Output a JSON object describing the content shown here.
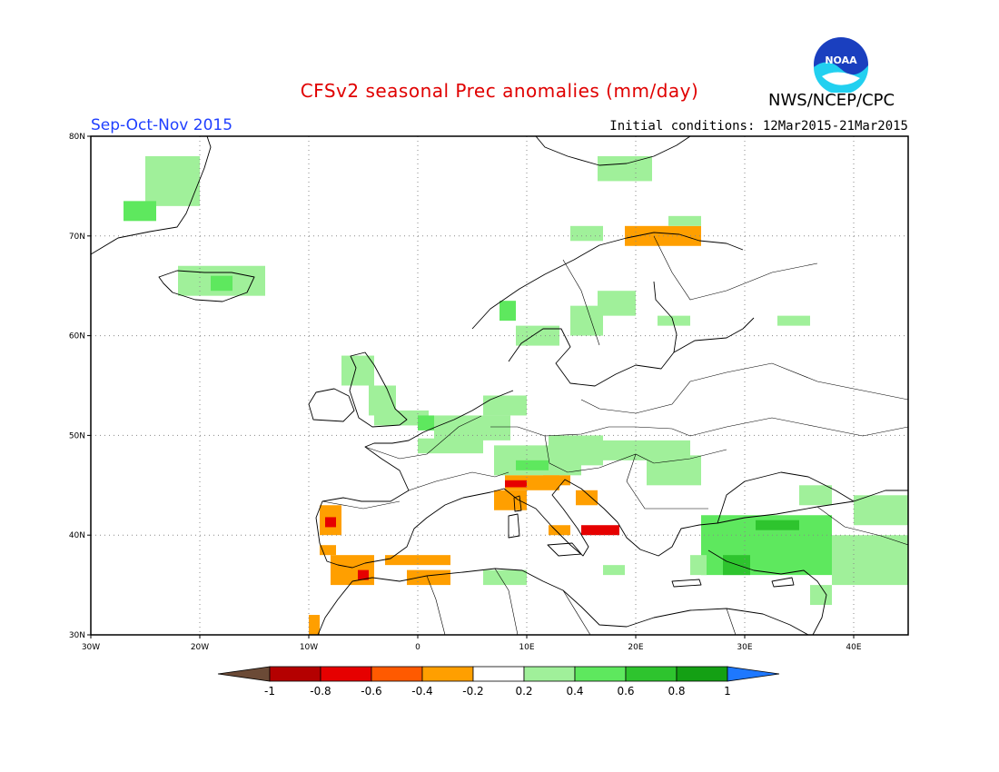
{
  "title": "CFSv2 seasonal Prec anomalies (mm/day)",
  "season": "Sep-Oct-Nov 2015",
  "initial_conditions": "Initial conditions: 12Mar2015-21Mar2015",
  "agency": "NWS/NCEP/CPC",
  "logo_text": "NOAA",
  "map": {
    "lon_range": [
      -30,
      45
    ],
    "lat_range": [
      30,
      80
    ],
    "lat_ticks": [
      "80N",
      "70N",
      "60N",
      "50N",
      "40N",
      "30N"
    ],
    "lon_ticks": [
      "30W",
      "20W",
      "10W",
      "0",
      "10E",
      "20E",
      "30E",
      "40E"
    ],
    "grid": "dotted"
  },
  "colorbar": {
    "labels": [
      "-1",
      "-0.8",
      "-0.6",
      "-0.4",
      "-0.2",
      "0.2",
      "0.4",
      "0.6",
      "0.8",
      "1"
    ],
    "colors": [
      "#6b4a36",
      "#b40000",
      "#e60000",
      "#ff5a00",
      "#ff9f00",
      "#ffffff",
      "#a0f09a",
      "#5ee85e",
      "#2ec42e",
      "#14a014",
      "#1e78ff"
    ]
  },
  "colors": {
    "land_outline": "#000000",
    "grid": "#888888"
  },
  "anomaly_cells": [
    {
      "lon": -25,
      "lat": 73,
      "w": 5,
      "h": 5,
      "level": 0.3
    },
    {
      "lon": -27,
      "lat": 71.5,
      "w": 3,
      "h": 2,
      "level": 0.5
    },
    {
      "lon": -22,
      "lat": 64,
      "w": 8,
      "h": 3,
      "level": 0.3
    },
    {
      "lon": -19,
      "lat": 64.5,
      "w": 2,
      "h": 1.5,
      "level": 0.5
    },
    {
      "lon": -7,
      "lat": 55,
      "w": 3,
      "h": 3,
      "level": 0.3
    },
    {
      "lon": -4.5,
      "lat": 52,
      "w": 2.5,
      "h": 3,
      "level": 0.3
    },
    {
      "lon": -4,
      "lat": 51,
      "w": 5,
      "h": 1.5,
      "level": 0.3
    },
    {
      "lon": 0,
      "lat": 50.5,
      "w": 1.5,
      "h": 1.5,
      "level": 0.5
    },
    {
      "lon": 0,
      "lat": 48.2,
      "w": 6,
      "h": 1.5,
      "level": 0.3
    },
    {
      "lon": 1.5,
      "lat": 49.5,
      "w": 7,
      "h": 2.5,
      "level": 0.3
    },
    {
      "lon": 6,
      "lat": 52,
      "w": 4,
      "h": 2,
      "level": 0.3
    },
    {
      "lon": 7,
      "lat": 46,
      "w": 8,
      "h": 3,
      "level": 0.3
    },
    {
      "lon": 9,
      "lat": 46.5,
      "w": 3,
      "h": 1,
      "level": 0.5
    },
    {
      "lon": 12,
      "lat": 47,
      "w": 5,
      "h": 3,
      "level": 0.3
    },
    {
      "lon": 17,
      "lat": 47.5,
      "w": 8,
      "h": 2,
      "level": 0.3
    },
    {
      "lon": 21,
      "lat": 45,
      "w": 5,
      "h": 3,
      "level": 0.3
    },
    {
      "lon": 9,
      "lat": 59,
      "w": 4,
      "h": 2,
      "level": 0.3
    },
    {
      "lon": 14,
      "lat": 60,
      "w": 3,
      "h": 3,
      "level": 0.3
    },
    {
      "lon": 16.5,
      "lat": 62,
      "w": 3.5,
      "h": 2.5,
      "level": 0.3
    },
    {
      "lon": 22,
      "lat": 61,
      "w": 3,
      "h": 1,
      "level": 0.3
    },
    {
      "lon": 33,
      "lat": 61,
      "w": 3,
      "h": 1,
      "level": 0.3
    },
    {
      "lon": 7.5,
      "lat": 61.5,
      "w": 1.5,
      "h": 2,
      "level": 0.5
    },
    {
      "lon": 16.5,
      "lat": 75.5,
      "w": 5,
      "h": 2.5,
      "level": 0.3
    },
    {
      "lon": 14,
      "lat": 69.5,
      "w": 3,
      "h": 1.5,
      "level": 0.3
    },
    {
      "lon": 19,
      "lat": 69,
      "w": 7,
      "h": 2,
      "level": -0.3
    },
    {
      "lon": 23,
      "lat": 71,
      "w": 3,
      "h": 1,
      "level": 0.3
    },
    {
      "lon": 7,
      "lat": 42.5,
      "w": 3,
      "h": 2,
      "level": -0.3
    },
    {
      "lon": 8,
      "lat": 44.5,
      "w": 5,
      "h": 1.5,
      "level": -0.3
    },
    {
      "lon": 8,
      "lat": 44.8,
      "w": 2,
      "h": 0.7,
      "level": -0.6
    },
    {
      "lon": 11.5,
      "lat": 45,
      "w": 2.5,
      "h": 1,
      "level": -0.3
    },
    {
      "lon": 14.5,
      "lat": 43,
      "w": 2,
      "h": 1.5,
      "level": -0.3
    },
    {
      "lon": 12,
      "lat": 40,
      "w": 2,
      "h": 1,
      "level": -0.3
    },
    {
      "lon": 15,
      "lat": 40,
      "w": 3.5,
      "h": 1,
      "level": -0.6
    },
    {
      "lon": -9,
      "lat": 40,
      "w": 2,
      "h": 3,
      "level": -0.3
    },
    {
      "lon": -8.5,
      "lat": 40.8,
      "w": 1,
      "h": 1,
      "level": -0.6
    },
    {
      "lon": -9,
      "lat": 38,
      "w": 1.5,
      "h": 1,
      "level": -0.3
    },
    {
      "lon": -8,
      "lat": 35,
      "w": 4,
      "h": 3,
      "level": -0.3
    },
    {
      "lon": -5.5,
      "lat": 35.5,
      "w": 1,
      "h": 1,
      "level": -0.6
    },
    {
      "lon": -3,
      "lat": 37,
      "w": 6,
      "h": 1,
      "level": -0.3
    },
    {
      "lon": -1,
      "lat": 35,
      "w": 4,
      "h": 1.5,
      "level": -0.3
    },
    {
      "lon": -10,
      "lat": 30,
      "w": 1,
      "h": 2,
      "level": -0.3
    },
    {
      "lon": 6,
      "lat": 35,
      "w": 4,
      "h": 1.5,
      "level": 0.3
    },
    {
      "lon": 17,
      "lat": 36,
      "w": 2,
      "h": 1,
      "level": 0.3
    },
    {
      "lon": 26,
      "lat": 36,
      "w": 12,
      "h": 6,
      "level": 0.5
    },
    {
      "lon": 38,
      "lat": 35,
      "w": 7,
      "h": 5,
      "level": 0.3
    },
    {
      "lon": 31,
      "lat": 40.5,
      "w": 4,
      "h": 1,
      "level": 0.7
    },
    {
      "lon": 28,
      "lat": 36,
      "w": 2.5,
      "h": 2,
      "level": 0.7
    },
    {
      "lon": 36,
      "lat": 33,
      "w": 2,
      "h": 2,
      "level": 0.3
    },
    {
      "lon": 40,
      "lat": 41,
      "w": 5,
      "h": 3,
      "level": 0.3
    },
    {
      "lon": 35,
      "lat": 43,
      "w": 3,
      "h": 2,
      "level": 0.3
    },
    {
      "lon": 25,
      "lat": 36,
      "w": 1.5,
      "h": 2,
      "level": 0.3
    }
  ]
}
